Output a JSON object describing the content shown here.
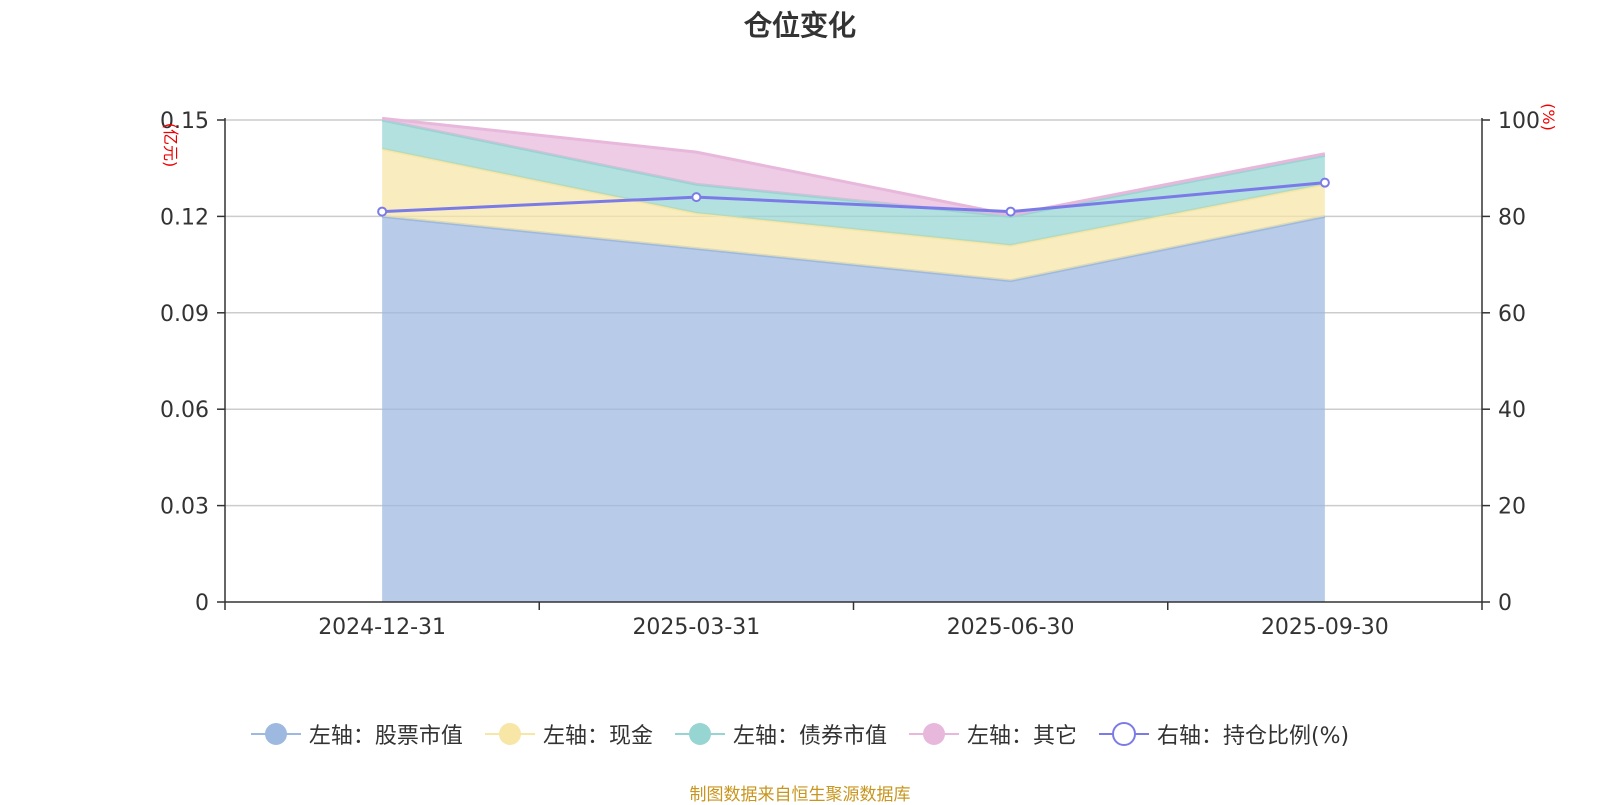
{
  "chart_data": {
    "type": "area",
    "title": "仓位变化",
    "categories": [
      "2024-12-31",
      "2025-03-31",
      "2025-06-30",
      "2025-09-30"
    ],
    "stacked": true,
    "y_left": {
      "unit": "(亿元)",
      "ticks": [
        "0",
        "0.03",
        "0.06",
        "0.09",
        "0.12",
        "0.15"
      ],
      "ylim": [
        0,
        0.15
      ]
    },
    "y_right": {
      "unit": "(%)",
      "ticks": [
        "0",
        "20",
        "40",
        "60",
        "80",
        "100"
      ],
      "ylim": [
        0,
        100
      ]
    },
    "grid": true,
    "legend_position": "bottom",
    "series": [
      {
        "name": "左轴：股票市值",
        "axis": "left",
        "type": "area",
        "color": "#9db9e0",
        "values": [
          0.12,
          0.11,
          0.1,
          0.12
        ]
      },
      {
        "name": "左轴：现金",
        "axis": "left",
        "type": "area",
        "color": "#f7e6a6",
        "values": [
          0.021,
          0.011,
          0.011,
          0.01
        ]
      },
      {
        "name": "左轴：债券市值",
        "axis": "left",
        "type": "area",
        "color": "#96d5d2",
        "values": [
          0.009,
          0.009,
          0.009,
          0.009
        ]
      },
      {
        "name": "左轴：其它",
        "axis": "left",
        "type": "area",
        "color": "#e7b8db",
        "values": [
          0.0005,
          0.01,
          0.0005,
          0.0005
        ]
      },
      {
        "name": "右轴：持仓比例(%)",
        "axis": "right",
        "type": "line",
        "color": "#7b7be8",
        "values": [
          81,
          84,
          81,
          87
        ]
      }
    ]
  },
  "source_note": "制图数据来自恒生聚源数据库"
}
